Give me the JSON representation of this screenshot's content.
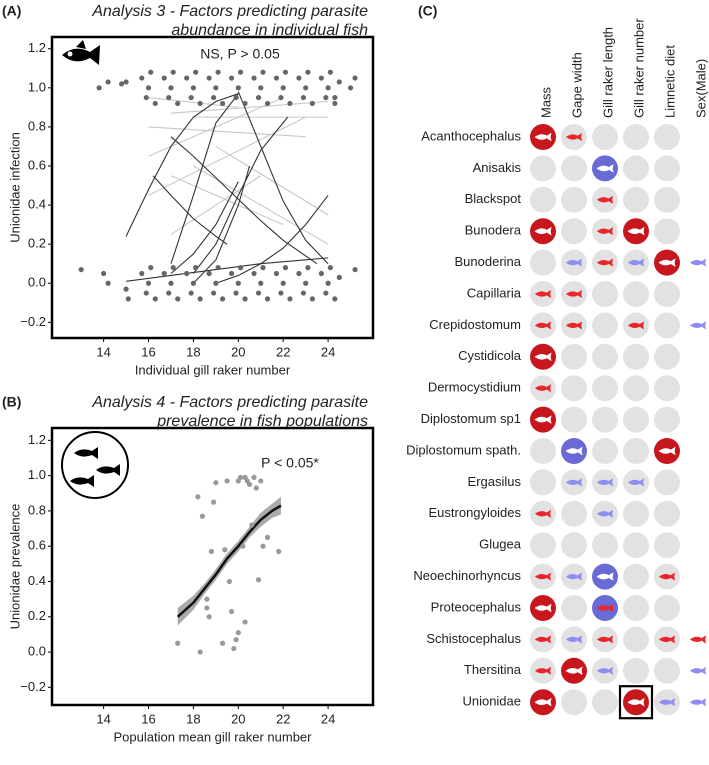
{
  "chart_data": [
    {
      "type": "scatter",
      "panel_label": "(A)",
      "title": [
        "Analysis 3 - Factors predicting parasite",
        "abundance in individual fish"
      ],
      "annotation": "NS, P > 0.05",
      "x_label": "Individual gill raker number",
      "y_label": "Unionidae infection",
      "xlim": [
        11.7,
        26
      ],
      "ylim": [
        -0.28,
        1.26
      ],
      "xticks": [
        14,
        16,
        18,
        20,
        22,
        24
      ],
      "yticks": [
        {
          "value": -0.2,
          "label": "−0.2"
        },
        {
          "value": 0,
          "label": "0.0"
        },
        0.2,
        0.4,
        0.6,
        0.8,
        {
          "value": 1,
          "label": "1.0"
        },
        1.2
      ],
      "points": {
        "color": "#666666",
        "x": [
          15.7,
          15.9,
          16.1,
          16.3,
          16,
          16.7,
          16.9,
          17.1,
          17.3,
          17,
          17.7,
          17.9,
          18.1,
          18.3,
          18,
          18.7,
          18.9,
          19.1,
          19.3,
          19,
          19.7,
          19.9,
          20.1,
          20.3,
          20,
          20.7,
          20.9,
          21.1,
          21.3,
          21,
          21.7,
          21.9,
          22.1,
          22.3,
          22,
          22.7,
          22.9,
          23.1,
          23.3,
          23,
          23.7,
          23.9,
          24.1,
          24.3,
          24,
          15.7,
          15.9,
          16.1,
          16.3,
          16,
          16.7,
          16.9,
          17.1,
          17.3,
          17,
          17.7,
          17.9,
          18.1,
          18.3,
          18,
          18.7,
          18.9,
          19.1,
          19.3,
          19,
          19.7,
          19.9,
          20.1,
          20.3,
          20,
          20.7,
          20.9,
          21.1,
          21.3,
          21,
          21.7,
          21.9,
          22.1,
          22.3,
          22,
          22.7,
          22.9,
          23.1,
          23.3,
          23,
          23.7,
          23.9,
          24.1,
          24.3,
          24,
          13,
          14,
          13.8,
          14.2,
          14.8,
          15,
          24.5,
          25,
          25.2,
          24.3,
          25.2,
          24.5,
          14.2,
          15,
          15.1
        ],
        "y": [
          1.05,
          0.95,
          1.08,
          0.92,
          1,
          1.05,
          0.95,
          1.08,
          0.92,
          1,
          1.05,
          0.95,
          1.08,
          0.92,
          1,
          1.05,
          0.95,
          1.08,
          0.92,
          1,
          1.05,
          0.95,
          1.08,
          0.92,
          1,
          1.05,
          0.95,
          1.08,
          0.92,
          1,
          1.05,
          0.95,
          1.08,
          0.92,
          1,
          1.05,
          0.95,
          1.08,
          0.92,
          1,
          1.05,
          0.95,
          1.08,
          0.92,
          1,
          0.05,
          -0.05,
          0.08,
          -0.08,
          0,
          0.05,
          -0.05,
          0.08,
          -0.08,
          0,
          0.05,
          -0.05,
          0.08,
          -0.08,
          0,
          0.05,
          -0.05,
          0.08,
          -0.08,
          0,
          0.05,
          -0.05,
          0.08,
          -0.08,
          0,
          0.05,
          -0.05,
          0.08,
          -0.08,
          0,
          0.05,
          -0.05,
          0.08,
          -0.08,
          0,
          0.05,
          -0.05,
          0.08,
          -0.08,
          0,
          0.05,
          -0.05,
          0.08,
          -0.08,
          0,
          0.07,
          0.05,
          1,
          1.03,
          1.02,
          1.03,
          1.03,
          1,
          1.05,
          0.95,
          0.07,
          0.03,
          0,
          -0.03,
          -0.08
        ]
      },
      "lines": [
        {
          "color": "#c8c8c8",
          "x": [
            17,
            24
          ],
          "y": [
            0.87,
            0.93
          ]
        },
        {
          "color": "#c8c8c8",
          "x": [
            16,
            22
          ],
          "y": [
            0.65,
            0.95
          ]
        },
        {
          "color": "#c8c8c8",
          "x": [
            16,
            23
          ],
          "y": [
            0.8,
            0.75
          ]
        },
        {
          "color": "#c8c8c8",
          "x": [
            18,
            24
          ],
          "y": [
            0.6,
            0.2
          ]
        },
        {
          "color": "#c8c8c8",
          "x": [
            17,
            22
          ],
          "y": [
            0.55,
            0.3
          ]
        },
        {
          "color": "#c8c8c8",
          "x": [
            18,
            24
          ],
          "y": [
            0.85,
            0.85
          ]
        },
        {
          "color": "#c8c8c8",
          "x": [
            16,
            23
          ],
          "y": [
            0.45,
            0.85
          ]
        },
        {
          "color": "#c8c8c8",
          "x": [
            19,
            24
          ],
          "y": [
            0.7,
            0.35
          ]
        },
        {
          "color": "#c8c8c8",
          "x": [
            17,
            21
          ],
          "y": [
            0.25,
            0.55
          ]
        },
        {
          "color": "#c8c8c8",
          "x": [
            16,
            20
          ],
          "y": [
            0.95,
            0.9
          ]
        },
        {
          "color": "#333333",
          "x": [
            15,
            16,
            17,
            18,
            19,
            20
          ],
          "y": [
            0.24,
            0.48,
            0.7,
            0.85,
            0.93,
            0.97
          ]
        },
        {
          "color": "#333333",
          "x": [
            17,
            18,
            19,
            20
          ],
          "y": [
            0.1,
            0.45,
            0.82,
            0.97
          ]
        },
        {
          "color": "#333333",
          "x": [
            16.2,
            17,
            18,
            19,
            19.5
          ],
          "y": [
            0.55,
            0.45,
            0.33,
            0.24,
            0.2
          ]
        },
        {
          "color": "#333333",
          "x": [
            17,
            18,
            19,
            20,
            21,
            22,
            23,
            23.5
          ],
          "y": [
            0.75,
            0.65,
            0.54,
            0.43,
            0.32,
            0.22,
            0.14,
            0.1
          ]
        },
        {
          "color": "#333333",
          "x": [
            18,
            19,
            20,
            21,
            22.2
          ],
          "y": [
            0.05,
            0.2,
            0.45,
            0.68,
            0.85
          ]
        },
        {
          "color": "#333333",
          "x": [
            17,
            18,
            19,
            20
          ],
          "y": [
            0.05,
            0.15,
            0.3,
            0.52
          ]
        },
        {
          "color": "#333333",
          "x": [
            15,
            17,
            19,
            21,
            23,
            24
          ],
          "y": [
            0.01,
            0.04,
            0.07,
            0.1,
            0.12,
            0.13
          ]
        },
        {
          "color": "#333333",
          "x": [
            19,
            20,
            21,
            22,
            23,
            24
          ],
          "y": [
            0,
            0.04,
            0.1,
            0.18,
            0.3,
            0.45
          ]
        },
        {
          "color": "#333333",
          "x": [
            18,
            19,
            20,
            20.5
          ],
          "y": [
            0,
            0.12,
            0.4,
            0.6
          ]
        },
        {
          "color": "#333333",
          "x": [
            20,
            21,
            22,
            23,
            24
          ],
          "y": [
            0.98,
            0.7,
            0.42,
            0.22,
            0.1
          ]
        }
      ]
    },
    {
      "type": "scatter",
      "panel_label": "(B)",
      "title": [
        "Analysis 4 - Factors predicting parasite",
        "prevalence in fish populations"
      ],
      "annotation": "P < 0.05*",
      "x_label": "Population mean gill raker number",
      "y_label": "Unionidae prevalence",
      "xlim": [
        11.7,
        26
      ],
      "ylim": [
        -0.3,
        1.27
      ],
      "xticks": [
        14,
        16,
        18,
        20,
        22,
        24
      ],
      "yticks": [
        {
          "value": -0.2,
          "label": "−0.2"
        },
        {
          "value": 0,
          "label": "0.0"
        },
        0.2,
        0.4,
        0.6,
        0.8,
        {
          "value": 1,
          "label": "1.0"
        },
        1.2
      ],
      "points": {
        "color": "#999999",
        "x": [
          17.3,
          18.2,
          18.3,
          18.4,
          18.6,
          18.6,
          18.7,
          18.8,
          18.9,
          19.0,
          19.3,
          19.4,
          19.5,
          19.6,
          19.8,
          19.9,
          20.0,
          20.0,
          20.1,
          20.2,
          20.3,
          20.4,
          20.5,
          20.6,
          20.7,
          20.8,
          20.9,
          21.0,
          20.3,
          21.1,
          21.8,
          21.3,
          19.7
        ],
        "y": [
          0.05,
          0.88,
          0,
          0.77,
          0.3,
          0.25,
          0.2,
          0.57,
          0.85,
          0.96,
          0.05,
          0.58,
          0.97,
          0.4,
          0.02,
          0.07,
          0.11,
          0.97,
          0.99,
          0.6,
          0.99,
          0.97,
          0.95,
          0.72,
          0.99,
          0.93,
          0.41,
          0.97,
          0.17,
          0.6,
          0.57,
          0.65,
          0.23
        ]
      },
      "band": {
        "color": "#888888",
        "x": [
          17.3,
          18,
          18.5,
          19,
          19.5,
          20,
          20.5,
          21,
          21.5,
          21.9
        ],
        "lower": [
          0.15,
          0.24,
          0.33,
          0.41,
          0.5,
          0.57,
          0.65,
          0.71,
          0.76,
          0.78
        ],
        "upper": [
          0.25,
          0.32,
          0.39,
          0.47,
          0.56,
          0.63,
          0.71,
          0.79,
          0.84,
          0.88
        ]
      },
      "lines": [
        {
          "color": "#111111",
          "x": [
            17.3,
            18,
            18.5,
            19,
            19.5,
            20,
            20.5,
            21,
            21.5,
            21.9
          ],
          "y": [
            0.2,
            0.28,
            0.36,
            0.44,
            0.53,
            0.6,
            0.68,
            0.75,
            0.8,
            0.83
          ]
        }
      ]
    },
    {
      "type": "matrix",
      "panel_label": "(C)",
      "columns": [
        "Mass",
        "Gape width",
        "Gill raker length",
        "Gill raker number",
        "Limnetic diet",
        "Sex(Male)"
      ],
      "rows": [
        "Acanthocephalus",
        "Anisakis",
        "Blackspot",
        "Bunodera",
        "Bunoderina",
        "Capillaria",
        "Crepidostomum",
        "Cystidicola",
        "Dermocystidium",
        "Diplostomum sp1",
        "Diplostomum spath.",
        "Ergasilus",
        "Eustrongyloides",
        "Glugea",
        "Neoechinorhyncus",
        "Proteocephalus",
        "Schistocephalus",
        "Thersitina",
        "Unionidae"
      ],
      "cells": [
        [
          "R",
          "r",
          "n",
          "n",
          "n",
          null
        ],
        [
          "n",
          "n",
          "B",
          "n",
          "n",
          null
        ],
        [
          "n",
          "n",
          "r",
          "n",
          "n",
          null
        ],
        [
          "R",
          "n",
          "r",
          "R",
          "n",
          null
        ],
        [
          "n",
          "b",
          "r",
          "b",
          "R",
          "b"
        ],
        [
          "r",
          "r",
          "n",
          "n",
          "n",
          null
        ],
        [
          "r",
          "r",
          "n",
          "r",
          "n",
          "b"
        ],
        [
          "R",
          "n",
          "n",
          "n",
          "n",
          null
        ],
        [
          "r",
          "n",
          "n",
          "n",
          "n",
          null
        ],
        [
          "R",
          "n",
          "n",
          "n",
          "n",
          null
        ],
        [
          "n",
          "B",
          "n",
          "n",
          "R",
          null
        ],
        [
          "n",
          "b",
          "b",
          "b",
          "n",
          null
        ],
        [
          "r",
          "n",
          "b",
          "n",
          "n",
          null
        ],
        [
          "n",
          "n",
          "n",
          "n",
          "n",
          null
        ],
        [
          "r",
          "b",
          "B",
          "n",
          "r",
          null
        ],
        [
          "R",
          "n",
          "P",
          "n",
          "n",
          null
        ],
        [
          "r",
          "b",
          "r",
          "n",
          "r",
          "r"
        ],
        [
          "r",
          "R",
          "b",
          "n",
          "n",
          "b"
        ],
        [
          "R",
          "n",
          "n",
          "R",
          "b",
          "b"
        ]
      ],
      "no_background_columns": [
        5
      ],
      "highlight": [
        18,
        3
      ],
      "colors": {
        "strong_positive": "#c8161e",
        "positive": "#e8262c",
        "strong_negative": "#6a6ad6",
        "negative": "#8e8ef2",
        "empty": "#e2e2e2"
      }
    }
  ]
}
